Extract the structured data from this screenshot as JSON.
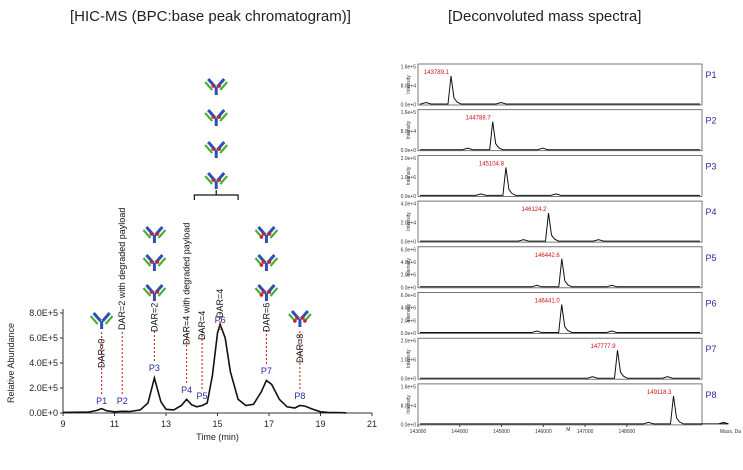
{
  "titles": {
    "left": "[HIC-MS (BPC:base peak chromatogram)]",
    "right": "[Deconvoluted mass spectra]"
  },
  "chart_data": [
    {
      "type": "line",
      "title": "HIC-MS (BPC:base peak chromatogram)",
      "xlabel": "Time (min)",
      "ylabel": "Relative Abundance",
      "xlim": [
        9,
        21
      ],
      "ylim": [
        0,
        800000
      ],
      "xticks": [
        "9",
        "11",
        "13",
        "15",
        "17",
        "19",
        "21"
      ],
      "yticks": [
        "0.0E+0",
        "2.0E+5",
        "4.0E+5",
        "6.0E+5",
        "8.0E+5"
      ],
      "x": [
        9.0,
        10.0,
        10.3,
        10.5,
        10.7,
        11.0,
        11.3,
        11.6,
        12.0,
        12.3,
        12.55,
        12.8,
        13.0,
        13.3,
        13.6,
        13.8,
        14.0,
        14.2,
        14.4,
        14.6,
        14.8,
        15.0,
        15.1,
        15.3,
        15.5,
        15.8,
        16.1,
        16.4,
        16.7,
        16.9,
        17.1,
        17.4,
        17.7,
        18.0,
        18.2,
        18.4,
        18.7,
        19.0,
        19.3,
        19.6,
        20.0
      ],
      "y": [
        5000,
        8000,
        20000,
        35000,
        18000,
        10000,
        14000,
        12000,
        25000,
        80000,
        280000,
        90000,
        30000,
        25000,
        60000,
        110000,
        65000,
        50000,
        60000,
        80000,
        300000,
        640000,
        710000,
        600000,
        330000,
        110000,
        60000,
        70000,
        170000,
        260000,
        230000,
        110000,
        50000,
        40000,
        60000,
        55000,
        30000,
        10000,
        5000,
        3000,
        2000
      ],
      "peaks": [
        {
          "label": "P1",
          "time": 10.5,
          "dar": "DAR=0"
        },
        {
          "label": "P2",
          "time": 11.3,
          "dar": "DAR=2 with degraded payload"
        },
        {
          "label": "P3",
          "time": 12.55,
          "dar": "DAR=2"
        },
        {
          "label": "P4",
          "time": 13.8,
          "dar": "DAR=4 with degraded payload"
        },
        {
          "label": "P5",
          "time": 14.4,
          "dar": "DAR=4"
        },
        {
          "label": "P6",
          "time": 15.1,
          "dar": "DAR=4"
        },
        {
          "label": "P7",
          "time": 16.9,
          "dar": "DAR=6"
        },
        {
          "label": "P8",
          "time": 18.2,
          "dar": "DAR=8"
        }
      ]
    },
    {
      "type": "line",
      "title": "Deconvoluted mass spectra",
      "xlabel": "Mass, Da",
      "ylabel": "Intensity",
      "xlim": [
        143000,
        149800
      ],
      "xticks": [
        "143000",
        "144000",
        "145000",
        "146000",
        "147000",
        "148000"
      ],
      "x_minor_label": "M",
      "panels": [
        {
          "label": "P1",
          "peak_mass": 143789.1,
          "mass_label": "143789.1",
          "yticks": [
            "0.0e+0",
            "8.0e+4",
            "1.6e+5"
          ]
        },
        {
          "label": "P2",
          "peak_mass": 144788.7,
          "mass_label": "144788.7",
          "yticks": [
            "0.0e+0",
            "8.0e+4",
            "1.6e+5"
          ]
        },
        {
          "label": "P3",
          "peak_mass": 145104.8,
          "mass_label": "145104.8",
          "yticks": [
            "0.0e+0",
            "1.0e+6",
            "2.0e+6"
          ]
        },
        {
          "label": "P4",
          "peak_mass": 146124.2,
          "mass_label": "146124.2",
          "yticks": [
            "0.0e+0",
            "2.0e+4",
            "4.0e+4"
          ]
        },
        {
          "label": "P5",
          "peak_mass": 146442.6,
          "mass_label": "146442.6",
          "yticks": [
            "0.0e+0",
            "2.0e+6",
            "4.0e+6",
            "6.0e+6"
          ]
        },
        {
          "label": "P6",
          "peak_mass": 146441.0,
          "mass_label": "146441.0",
          "yticks": [
            "0.0e+0",
            "2.0e+6",
            "4.0e+6",
            "6.0e+6"
          ]
        },
        {
          "label": "P7",
          "peak_mass": 147777.9,
          "mass_label": "147777.9",
          "yticks": [
            "0.0e+0",
            "1.0e+6",
            "2.0e+6"
          ]
        },
        {
          "label": "P8",
          "peak_mass": 149118.3,
          "mass_label": "149118.3",
          "yticks": [
            "0.0e+0",
            "8.0e+4",
            "1.6e+5"
          ]
        }
      ]
    }
  ],
  "colors": {
    "peak_label": "#2a2aa0",
    "mass_label": "#d01010",
    "dashed": "#d01010",
    "antibody_heavy": "#2d4fb8",
    "antibody_light": "#4cae3a",
    "payload": "#c0282a"
  }
}
